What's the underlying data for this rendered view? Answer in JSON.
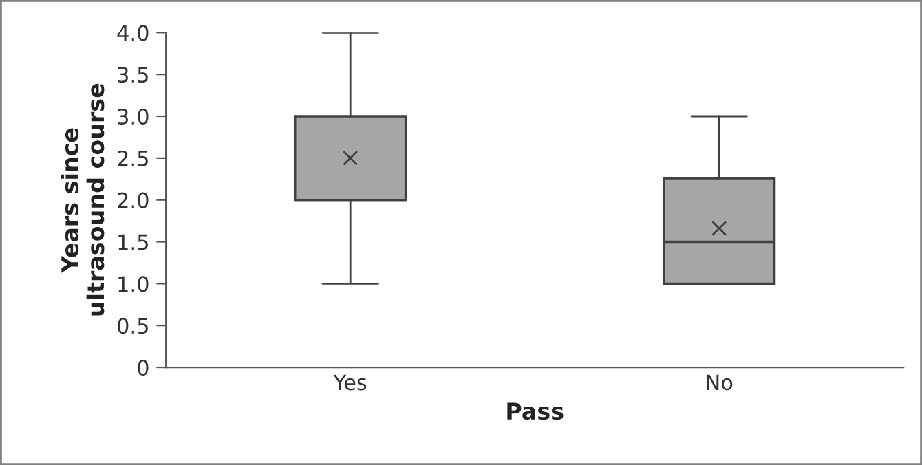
{
  "chart_data": {
    "type": "box",
    "xlabel": "Pass",
    "ylabel": "Years since\nultrasound course",
    "categories": [
      "Yes",
      "No"
    ],
    "series": [
      {
        "color": "#a6a6a6",
        "boxes": [
          {
            "low": 1.0,
            "q1": 2.0,
            "median": 2.0,
            "q3": 3.0,
            "high": 4.0,
            "mean": 2.5
          },
          {
            "low": 1.0,
            "q1": 1.0,
            "median": 1.5,
            "q3": 2.26,
            "high": 3.0,
            "mean": 1.66
          }
        ]
      }
    ],
    "ylim": [
      0,
      4.0
    ],
    "yticks": [
      {
        "value": 0,
        "label": "0"
      },
      {
        "value": 0.5,
        "label": "0.5"
      },
      {
        "value": 1.0,
        "label": "1.0"
      },
      {
        "value": 1.5,
        "label": "1.5"
      },
      {
        "value": 2.0,
        "label": "2.0"
      },
      {
        "value": 2.5,
        "label": "2.5"
      },
      {
        "value": 3.0,
        "label": "3.0"
      },
      {
        "value": 3.5,
        "label": "3.5"
      },
      {
        "value": 4.0,
        "label": "4.0"
      }
    ],
    "grid": false,
    "marker": "cross"
  }
}
